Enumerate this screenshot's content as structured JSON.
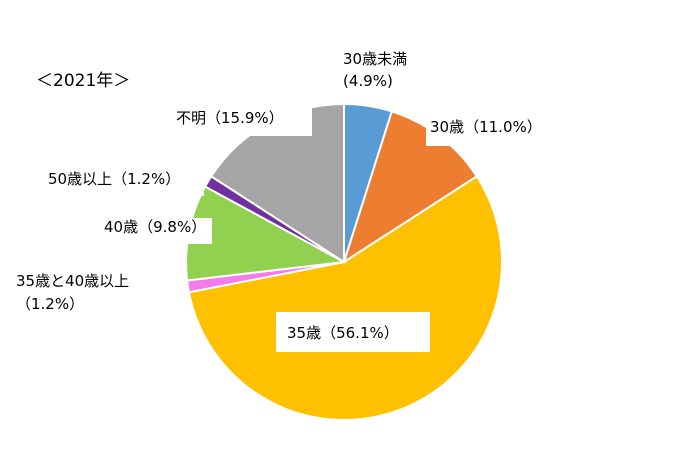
{
  "title": "＜2021年＞",
  "chart_data": {
    "type": "pie",
    "title": "＜2021年＞",
    "categories": [
      "30歳未満",
      "30歳",
      "35歳",
      "35歳と40歳以上",
      "40歳",
      "50歳以上",
      "不明"
    ],
    "values": [
      4.9,
      11.0,
      56.1,
      1.2,
      9.8,
      1.2,
      15.9
    ],
    "labels": [
      [
        "30歳未満",
        "(4.9%)"
      ],
      [
        "30歳（11.0%）"
      ],
      [
        "35歳（56.1%）"
      ],
      [
        "35歳と40歳以上",
        "（1.2%）"
      ],
      [
        "40歳（9.8%）"
      ],
      [
        "50歳以上（1.2%）"
      ],
      [
        "不明（15.9%）"
      ]
    ],
    "colors": [
      "#5B9BD5",
      "#ED7D31",
      "#FFC000",
      "#F47BEA",
      "#92D050",
      "#7030A0",
      "#A5A5A5"
    ],
    "start_angle_deg": 0,
    "direction": "clockwise",
    "unit": "%"
  }
}
